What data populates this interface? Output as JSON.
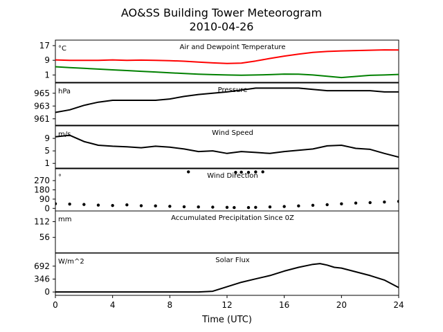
{
  "header": {
    "title": "AO&SS Building Tower Meteorogram",
    "date": "2010-04-26"
  },
  "chart_data": [
    {
      "type": "line",
      "title": "Air and Dewpoint Temperature",
      "unit": "°C",
      "ylim": [
        -3,
        20
      ],
      "yticks": [
        17,
        9,
        1
      ],
      "series": [
        {
          "color": "#ff0000",
          "x": [
            0,
            1,
            2,
            3,
            4,
            5,
            6,
            7,
            8,
            9,
            10,
            11,
            12,
            13,
            14,
            15,
            16,
            17,
            18,
            19,
            20,
            21,
            22,
            23,
            24
          ],
          "values": [
            9.2,
            9.0,
            9.0,
            9.0,
            9.2,
            9.0,
            9.1,
            9.0,
            8.8,
            8.5,
            8.0,
            7.6,
            7.3,
            7.5,
            8.6,
            10.0,
            11.3,
            12.4,
            13.3,
            13.8,
            14.1,
            14.3,
            14.5,
            14.7,
            14.6
          ]
        },
        {
          "color": "#008000",
          "x": [
            0,
            1,
            2,
            3,
            4,
            5,
            6,
            7,
            8,
            9,
            10,
            11,
            12,
            13,
            14,
            15,
            16,
            17,
            18,
            19,
            20,
            21,
            22,
            23,
            24
          ],
          "values": [
            5.5,
            5.0,
            4.6,
            4.2,
            3.8,
            3.4,
            3.0,
            2.6,
            2.2,
            1.8,
            1.4,
            1.2,
            1.0,
            0.9,
            1.0,
            1.2,
            1.5,
            1.4,
            1.0,
            0.3,
            -0.4,
            0.2,
            0.8,
            1.0,
            1.3
          ]
        }
      ]
    },
    {
      "type": "line",
      "title": "Pressure",
      "unit": "hPa",
      "ylim": [
        960,
        966.6
      ],
      "yticks": [
        965,
        963,
        961
      ],
      "series": [
        {
          "color": "#000000",
          "x": [
            0,
            1,
            2,
            3,
            4,
            5,
            6,
            7,
            8,
            9,
            10,
            11,
            12,
            13,
            14,
            15,
            16,
            17,
            18,
            19,
            20,
            21,
            22,
            23,
            24
          ],
          "values": [
            962.0,
            962.4,
            963.1,
            963.6,
            963.9,
            963.9,
            963.9,
            963.9,
            964.1,
            964.5,
            964.8,
            965.0,
            965.2,
            965.5,
            965.8,
            965.8,
            965.8,
            965.8,
            965.6,
            965.4,
            965.4,
            965.4,
            965.4,
            965.2,
            965.2
          ]
        }
      ]
    },
    {
      "type": "line",
      "title": "Wind Speed",
      "unit": "m/s",
      "ylim": [
        -0.5,
        13
      ],
      "yticks": [
        9,
        5,
        1
      ],
      "series": [
        {
          "color": "#000000",
          "x": [
            0,
            1,
            2,
            3,
            4,
            5,
            6,
            7,
            8,
            9,
            10,
            11,
            12,
            13,
            14,
            15,
            16,
            17,
            18,
            19,
            20,
            21,
            22,
            23,
            24
          ],
          "values": [
            9.5,
            10.0,
            8.0,
            6.8,
            6.5,
            6.3,
            6.0,
            6.5,
            6.2,
            5.6,
            4.8,
            5.0,
            4.2,
            4.8,
            4.5,
            4.2,
            4.8,
            5.2,
            5.6,
            6.6,
            6.8,
            5.8,
            5.5,
            4.2,
            3.0
          ]
        }
      ]
    },
    {
      "type": "scatter",
      "title": "Wind Direction",
      "unit": "°",
      "ylim": [
        -25,
        385
      ],
      "yticks": [
        270,
        180,
        90,
        0
      ],
      "series": [
        {
          "color": "#000000",
          "x": [
            0,
            1,
            2,
            3,
            4,
            5,
            6,
            7,
            8,
            9,
            10,
            11,
            12,
            12.5,
            13.5,
            14,
            15,
            16,
            17,
            18,
            19,
            20,
            21,
            22,
            23,
            24
          ],
          "values": [
            45,
            42,
            38,
            32,
            28,
            34,
            26,
            24,
            20,
            16,
            14,
            12,
            10,
            8,
            8,
            10,
            14,
            18,
            24,
            30,
            36,
            44,
            52,
            56,
            62,
            68
          ]
        },
        {
          "color": "#000000",
          "x": [
            9.3,
            12.6,
            13.0,
            13.5,
            14.0,
            14.5
          ],
          "values": [
            355,
            350,
            352,
            350,
            354,
            355
          ]
        }
      ]
    },
    {
      "type": "line",
      "title": "Accumulated Precipitation Since 0Z",
      "unit": "mm",
      "ylim": [
        0,
        150
      ],
      "yticks": [
        112,
        56
      ],
      "series": [
        {
          "color": "#000000",
          "x": [
            0,
            24
          ],
          "values": [
            0,
            0
          ]
        }
      ]
    },
    {
      "type": "line",
      "title": "Solar Flux",
      "unit": "W/m^2",
      "ylim": [
        -90,
        1040
      ],
      "yticks": [
        692,
        346,
        0
      ],
      "xlabel": "Time (UTC)",
      "xlim": [
        0,
        24
      ],
      "xticks": [
        0,
        4,
        8,
        12,
        16,
        20,
        24
      ],
      "series": [
        {
          "color": "#000000",
          "x": [
            0,
            4,
            6,
            8,
            10,
            11,
            12,
            13,
            14,
            15,
            16,
            17,
            18,
            18.5,
            19,
            19.5,
            20,
            21,
            22,
            23,
            24
          ],
          "values": [
            0,
            0,
            0,
            0,
            0,
            20,
            140,
            260,
            350,
            440,
            560,
            660,
            740,
            760,
            720,
            660,
            640,
            540,
            440,
            320,
            120
          ]
        }
      ]
    }
  ]
}
